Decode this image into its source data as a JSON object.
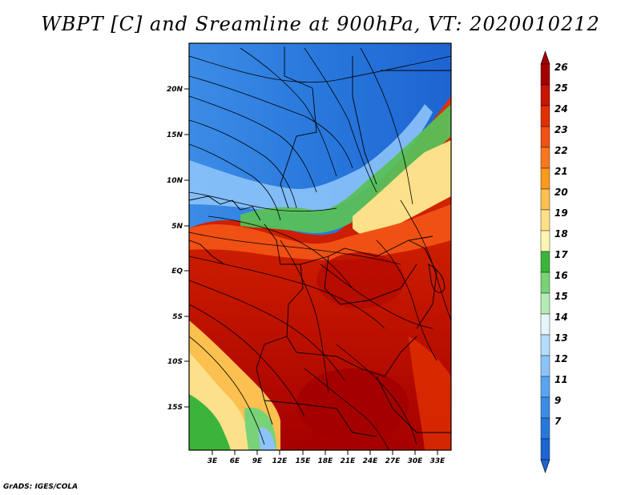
{
  "title": "WBPT [C] and Sreamline at 900hPa, VT: 2020010212",
  "credit": "GrADS: IGES/COLA",
  "map": {
    "lat_labels": [
      "20N",
      "15N",
      "10N",
      "5N",
      "EQ",
      "5S",
      "10S",
      "15S"
    ],
    "lon_labels": [
      "3E",
      "6E",
      "9E",
      "12E",
      "15E",
      "18E",
      "21E",
      "24E",
      "27E",
      "30E",
      "33E"
    ]
  },
  "colorbar": {
    "levels": [
      "26",
      "25",
      "24",
      "23",
      "22",
      "21",
      "20",
      "19",
      "18",
      "17",
      "16",
      "15",
      "14",
      "13",
      "12",
      "11",
      "9",
      "7"
    ],
    "colors": [
      "#a50000",
      "#c81400",
      "#e03000",
      "#f05014",
      "#f8781e",
      "#fa9a1e",
      "#fbc050",
      "#fde08a",
      "#fdf5b4",
      "#3cb43c",
      "#78d278",
      "#b4ebb4",
      "#e6f5f5",
      "#b4dcfa",
      "#8cc3fa",
      "#5aa5f0",
      "#3c8ce6",
      "#2878dc",
      "#1e64d2"
    ],
    "top_arrow_color": "#a50000",
    "bottom_arrow_color": "#1e64d2"
  }
}
